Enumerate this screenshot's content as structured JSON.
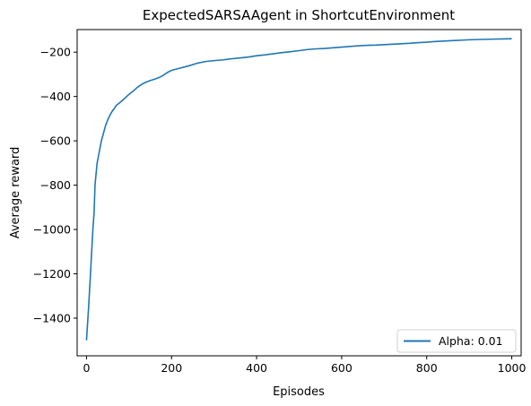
{
  "chart_data": {
    "type": "line",
    "title": "ExpectedSARSAAgent in ShortcutEnvironment",
    "xlabel": "Episodes",
    "ylabel": "Average reward",
    "xlim": [
      -22,
      1022
    ],
    "ylim": [
      -1570,
      -98
    ],
    "xticks": [
      0,
      200,
      400,
      600,
      800,
      1000
    ],
    "yticks": [
      -1400,
      -1200,
      -1000,
      -800,
      -600,
      -400,
      -200
    ],
    "xtick_labels": [
      "0",
      "200",
      "400",
      "600",
      "800",
      "1000"
    ],
    "ytick_labels": [
      "−1400",
      "−1200",
      "−1000",
      "−800",
      "−600",
      "−400",
      "−200"
    ],
    "grid": false,
    "legend": "lower-right",
    "series": [
      {
        "name": "Alpha: 0.01",
        "color": "#1f77b4",
        "x": [
          0,
          5,
          10,
          15,
          18,
          20,
          22,
          25,
          30,
          35,
          40,
          45,
          50,
          55,
          60,
          65,
          70,
          80,
          90,
          100,
          110,
          120,
          130,
          140,
          150,
          160,
          170,
          180,
          190,
          200,
          220,
          240,
          260,
          280,
          300,
          320,
          340,
          360,
          380,
          400,
          420,
          440,
          460,
          480,
          500,
          520,
          540,
          560,
          580,
          600,
          620,
          640,
          660,
          680,
          700,
          720,
          740,
          760,
          780,
          800,
          820,
          840,
          860,
          880,
          900,
          920,
          940,
          960,
          980,
          1000
        ],
        "y": [
          -1500,
          -1350,
          -1180,
          -1000,
          -920,
          -800,
          -760,
          -700,
          -650,
          -600,
          -565,
          -530,
          -505,
          -485,
          -468,
          -455,
          -440,
          -425,
          -408,
          -390,
          -375,
          -358,
          -345,
          -335,
          -328,
          -322,
          -315,
          -305,
          -292,
          -282,
          -272,
          -262,
          -250,
          -242,
          -238,
          -235,
          -230,
          -226,
          -222,
          -216,
          -212,
          -207,
          -202,
          -198,
          -193,
          -188,
          -185,
          -183,
          -180,
          -177,
          -174,
          -171,
          -169,
          -168,
          -166,
          -164,
          -162,
          -160,
          -157,
          -155,
          -152,
          -150,
          -148,
          -146,
          -144,
          -143,
          -142,
          -141,
          -140,
          -139
        ]
      }
    ]
  }
}
